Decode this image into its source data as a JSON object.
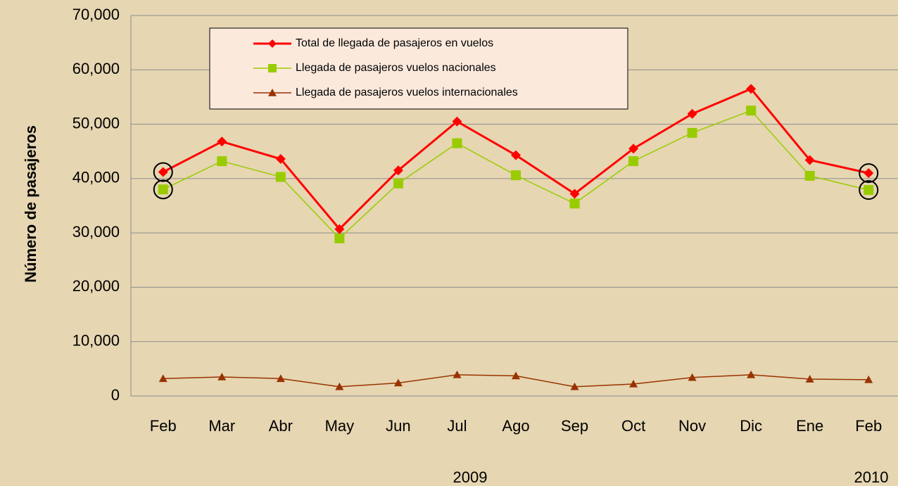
{
  "chart_data": {
    "type": "line",
    "y_label": "Número de pasajeros",
    "categories": [
      "Feb",
      "Mar",
      "Abr",
      "May",
      "Jun",
      "Jul",
      "Ago",
      "Sep",
      "Oct",
      "Nov",
      "Dic",
      "Ene",
      "Feb"
    ],
    "year_labels": [
      "2009",
      "2010"
    ],
    "series": [
      {
        "name": "Total de llegada de pasajeros en vuelos",
        "color": "#ff0000",
        "marker": "diamond",
        "values": [
          41200,
          46800,
          43600,
          30700,
          41500,
          50500,
          44300,
          37200,
          45500,
          51900,
          56500,
          43400,
          41000
        ]
      },
      {
        "name": "Llegada de pasajeros vuelos nacionales",
        "color": "#99cc00",
        "marker": "square",
        "values": [
          38000,
          43200,
          40300,
          29000,
          39100,
          46500,
          40600,
          35400,
          43200,
          48400,
          52500,
          40500,
          37900
        ]
      },
      {
        "name": "Llegada de pasajeros vuelos internacionales",
        "color": "#993300",
        "marker": "triangle",
        "values": [
          3200,
          3500,
          3200,
          1700,
          2400,
          3900,
          3700,
          1700,
          2200,
          3400,
          3900,
          3100,
          3000
        ]
      }
    ],
    "ylim": [
      0,
      70000
    ],
    "yticks": [
      0,
      {
        "value": 10000,
        "label": "10,000"
      },
      {
        "value": 20000,
        "label": "20,000"
      },
      {
        "value": 30000,
        "label": "30,000"
      },
      {
        "value": 40000,
        "label": "40,000"
      },
      {
        "value": 50000,
        "label": "50,000"
      },
      {
        "value": 60000,
        "label": "60,000"
      },
      {
        "value": 70000,
        "label": "70,000"
      }
    ],
    "grid": true
  }
}
